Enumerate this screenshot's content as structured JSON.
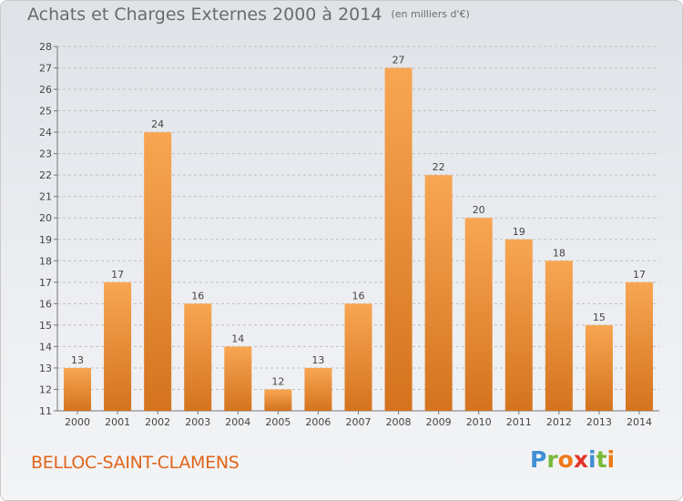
{
  "header": {
    "title": "Achats et Charges Externes 2000 à 2014",
    "subtitle": "(en milliers d'€)"
  },
  "location": "BELLOC-SAINT-CLAMENS",
  "logo": {
    "letters": [
      "P",
      "r",
      "o",
      "x",
      "i",
      "t",
      "i"
    ],
    "colors": [
      "#3f8fd6",
      "#78b93a",
      "#ef7a1a",
      "#e3342a",
      "#3f8fd6",
      "#78b93a",
      "#ef7a1a"
    ]
  },
  "colors": {
    "bar_top": "#f8a653",
    "bar_bottom": "#d4731e",
    "grid": "#bfbfbf"
  },
  "chart_data": {
    "type": "bar",
    "categories": [
      "2000",
      "2001",
      "2002",
      "2003",
      "2004",
      "2005",
      "2006",
      "2007",
      "2008",
      "2009",
      "2010",
      "2011",
      "2012",
      "2013",
      "2014"
    ],
    "values": [
      13,
      17,
      24,
      16,
      14,
      12,
      13,
      16,
      27,
      22,
      20,
      19,
      18,
      15,
      17
    ],
    "ylim": [
      11,
      28
    ],
    "yticks": [
      11,
      12,
      13,
      14,
      15,
      16,
      17,
      18,
      19,
      20,
      21,
      22,
      23,
      24,
      25,
      26,
      27,
      28
    ],
    "grid": true,
    "data_labels": true
  }
}
